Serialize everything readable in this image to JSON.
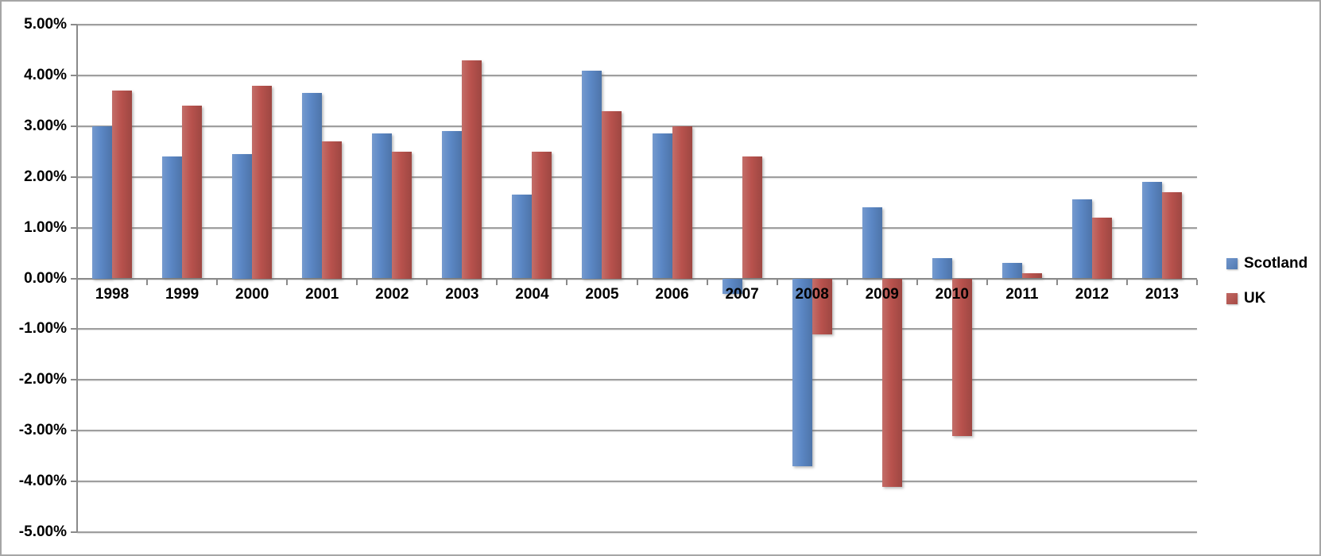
{
  "chart_data": {
    "type": "bar",
    "title": "",
    "xlabel": "",
    "ylabel": "",
    "grid": true,
    "legend_position": "right",
    "value_format": "percent",
    "ylim": [
      -5,
      5
    ],
    "categories": [
      "1998",
      "1999",
      "2000",
      "2001",
      "2002",
      "2003",
      "2004",
      "2005",
      "2006",
      "2007",
      "2008",
      "2009",
      "2010",
      "2011",
      "2012",
      "2013"
    ],
    "series": [
      {
        "name": "Scotland",
        "color": "#5b87c5",
        "values": [
          3.0,
          2.4,
          2.45,
          3.65,
          2.85,
          2.9,
          1.65,
          4.1,
          2.85,
          -0.3,
          -3.7,
          1.4,
          0.4,
          0.3,
          1.55,
          1.9
        ]
      },
      {
        "name": "UK",
        "color": "#b8524d",
        "values": [
          3.7,
          3.4,
          3.8,
          2.7,
          2.5,
          4.3,
          2.5,
          3.3,
          3.0,
          2.4,
          -1.1,
          -4.1,
          -3.1,
          0.1,
          1.2,
          1.7
        ]
      }
    ],
    "yticks": [
      {
        "value": 5,
        "label": "5.00%"
      },
      {
        "value": 4,
        "label": "4.00%"
      },
      {
        "value": 3,
        "label": "3.00%"
      },
      {
        "value": 2,
        "label": "2.00%"
      },
      {
        "value": 1,
        "label": "1.00%"
      },
      {
        "value": 0,
        "label": "0.00%"
      },
      {
        "value": -1,
        "label": "-1.00%"
      },
      {
        "value": -2,
        "label": "-2.00%"
      },
      {
        "value": -3,
        "label": "-3.00%"
      },
      {
        "value": -4,
        "label": "-4.00%"
      },
      {
        "value": -5,
        "label": "-5.00%"
      }
    ]
  }
}
